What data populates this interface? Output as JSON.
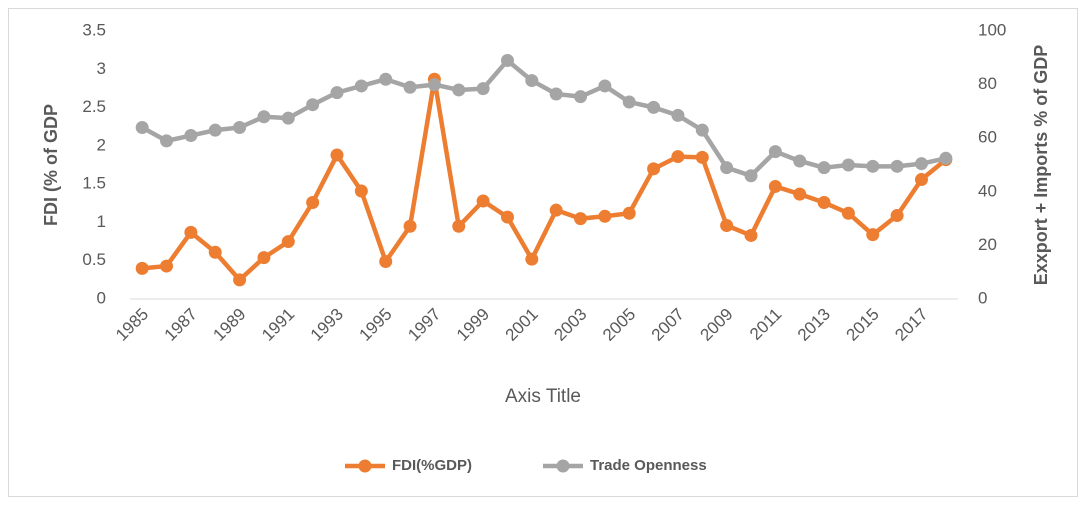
{
  "chart_data": {
    "type": "line",
    "categories": [
      "1985",
      null,
      "1987",
      null,
      "1989",
      null,
      "1991",
      null,
      "1993",
      null,
      "1995",
      null,
      "1997",
      null,
      "1999",
      null,
      "2001",
      null,
      "2003",
      null,
      "2005",
      null,
      "2007",
      null,
      "2009",
      null,
      "2011",
      null,
      "2013",
      null,
      "2015",
      null,
      "2017",
      null
    ],
    "x_label": "Axis Title",
    "y_label": "FDI (% of GDP",
    "y2_label": "Exxport + Imports % of GDP",
    "ylim": [
      0,
      3.5
    ],
    "yticks": [
      0,
      0.5,
      1,
      1.5,
      2,
      2.5,
      3,
      3.5
    ],
    "y2lim": [
      0,
      100
    ],
    "y2ticks": [
      0,
      20,
      40,
      60,
      80,
      100
    ],
    "legend": "bottom",
    "series": [
      {
        "name": "FDI(%GDP)",
        "color": "#ed7d31",
        "values": [
          0.4,
          0.43,
          0.87,
          0.61,
          0.25,
          0.54,
          0.75,
          1.26,
          1.88,
          1.41,
          0.49,
          0.95,
          2.87,
          0.95,
          1.28,
          1.07,
          0.52,
          1.16,
          1.05,
          1.08,
          1.12,
          1.7,
          1.86,
          1.85,
          0.96,
          0.83,
          1.47,
          1.37,
          1.26,
          1.12,
          0.84,
          1.09,
          1.56,
          1.82
        ]
      },
      {
        "name": "Trade Openness",
        "color": "#a5a5a5",
        "axis": "y2",
        "values": [
          64,
          59,
          61,
          63,
          64,
          68,
          67.5,
          72.5,
          77,
          79.5,
          82,
          79,
          80,
          78,
          78.5,
          89,
          81.5,
          76.5,
          75.5,
          79.5,
          73.5,
          71.5,
          68.5,
          63,
          49,
          46,
          55,
          51.5,
          49,
          50,
          49.5,
          49.5,
          50.5,
          52.5
        ]
      }
    ]
  }
}
